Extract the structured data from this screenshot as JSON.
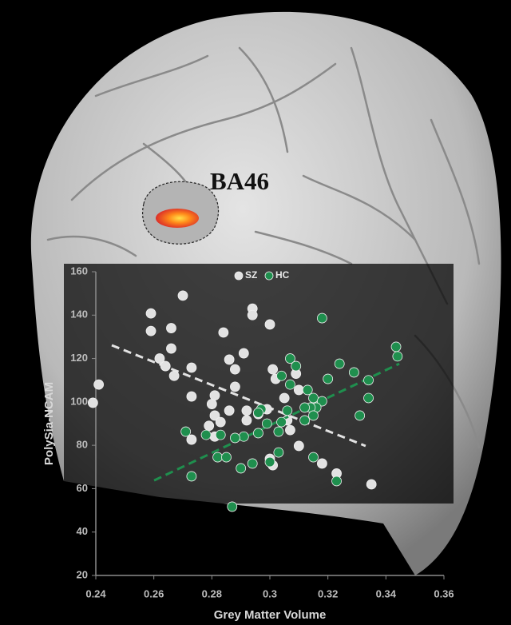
{
  "chart_data": {
    "type": "scatter",
    "annotation": "BA46",
    "xlabel": "Grey Matter Volume",
    "ylabel": "PolySia-NCAM",
    "xlim": [
      0.24,
      0.36
    ],
    "ylim": [
      20,
      160
    ],
    "xticks": [
      0.24,
      0.26,
      0.28,
      0.3,
      0.32,
      0.34,
      0.36
    ],
    "yticks": [
      20,
      40,
      60,
      80,
      100,
      120,
      140,
      160
    ],
    "grid": false,
    "series": [
      {
        "name": "SZ",
        "color": "#e2e2e2",
        "x": [
          0.239,
          0.241,
          0.259,
          0.259,
          0.27,
          0.266,
          0.266,
          0.262,
          0.264,
          0.267,
          0.273,
          0.273,
          0.281,
          0.28,
          0.284,
          0.286,
          0.288,
          0.291,
          0.288,
          0.286,
          0.281,
          0.279,
          0.283,
          0.281,
          0.273,
          0.294,
          0.294,
          0.3,
          0.292,
          0.292,
          0.296,
          0.301,
          0.302,
          0.299,
          0.305,
          0.306,
          0.307,
          0.309,
          0.31,
          0.301,
          0.3,
          0.31,
          0.318,
          0.323,
          0.335
        ],
        "y": [
          99.6,
          108,
          140.8,
          132.7,
          149,
          134,
          124.6,
          120,
          116.5,
          112,
          115.8,
          102.5,
          103,
          99,
          132,
          119.5,
          115,
          122.4,
          107,
          96,
          93.7,
          89,
          90.7,
          84,
          82.6,
          143,
          140,
          135.7,
          96,
          91.5,
          94.4,
          115,
          110.6,
          96.6,
          101.8,
          91.5,
          87,
          113,
          105.5,
          70.8,
          73.8,
          79.7,
          71.6,
          67,
          62
        ],
        "trendline": {
          "x": [
            0.2455,
            0.333
          ],
          "y": [
            126.1,
            79.7
          ]
        }
      },
      {
        "name": "HC",
        "color": "#1f8f4e",
        "x": [
          0.318,
          0.3435,
          0.344,
          0.324,
          0.307,
          0.309,
          0.313,
          0.315,
          0.318,
          0.316,
          0.314,
          0.312,
          0.315,
          0.312,
          0.306,
          0.304,
          0.307,
          0.304,
          0.303,
          0.299,
          0.297,
          0.296,
          0.296,
          0.291,
          0.288,
          0.283,
          0.278,
          0.271,
          0.282,
          0.285,
          0.294,
          0.3,
          0.303,
          0.315,
          0.29,
          0.273,
          0.287,
          0.323,
          0.331,
          0.334,
          0.334,
          0.329,
          0.32
        ],
        "y": [
          138.6,
          125.4,
          121,
          117.6,
          120,
          116.5,
          105.5,
          101.8,
          100.3,
          97.4,
          97.4,
          97.4,
          93.7,
          91.5,
          96,
          112,
          108,
          90.7,
          86.3,
          90,
          96.6,
          95,
          85.6,
          84,
          83.4,
          84.8,
          84.8,
          86.3,
          74.5,
          74.5,
          71.6,
          72.3,
          76.7,
          74.5,
          69.4,
          65.7,
          51.7,
          63.5,
          93.7,
          101.8,
          110,
          113.6,
          110.6
        ],
        "trendline": {
          "x": [
            0.2601,
            0.3446
          ],
          "y": [
            63.8,
            117.6
          ]
        }
      }
    ]
  }
}
